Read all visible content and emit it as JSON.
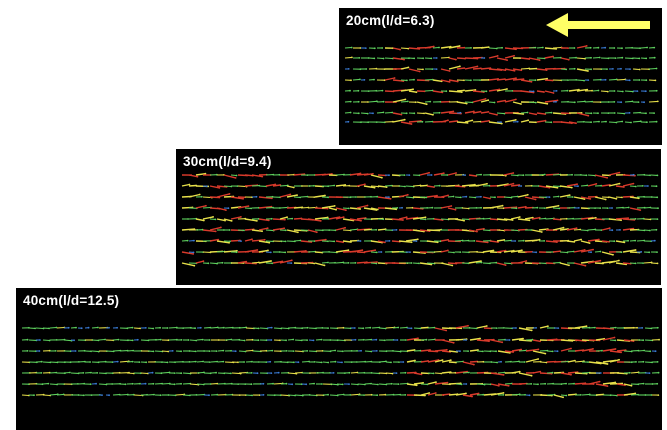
{
  "panels": [
    {
      "id": "20",
      "label": "20cm(l/d=6.3)",
      "disturbed_ranges": [
        [
          0.12,
          0.55
        ],
        [
          0.3,
          0.75
        ]
      ],
      "has_flow_arrow": true
    },
    {
      "id": "30",
      "label": "30cm(l/d=9.4)",
      "disturbed_ranges": [
        [
          0.0,
          0.35
        ],
        [
          0.35,
          0.95
        ]
      ],
      "has_flow_arrow": false
    },
    {
      "id": "40",
      "label": "40cm(l/d=12.5)",
      "disturbed_ranges": [
        [
          0.6,
          0.95
        ]
      ],
      "has_flow_arrow": false
    }
  ],
  "colors": {
    "background": "#000000",
    "low_speed": "#3a7bd5",
    "mid_speed": "#5fd35f",
    "high_speed": "#e8e14a",
    "peak_speed": "#d93a2b",
    "flow_arrow": "#ffff66"
  }
}
